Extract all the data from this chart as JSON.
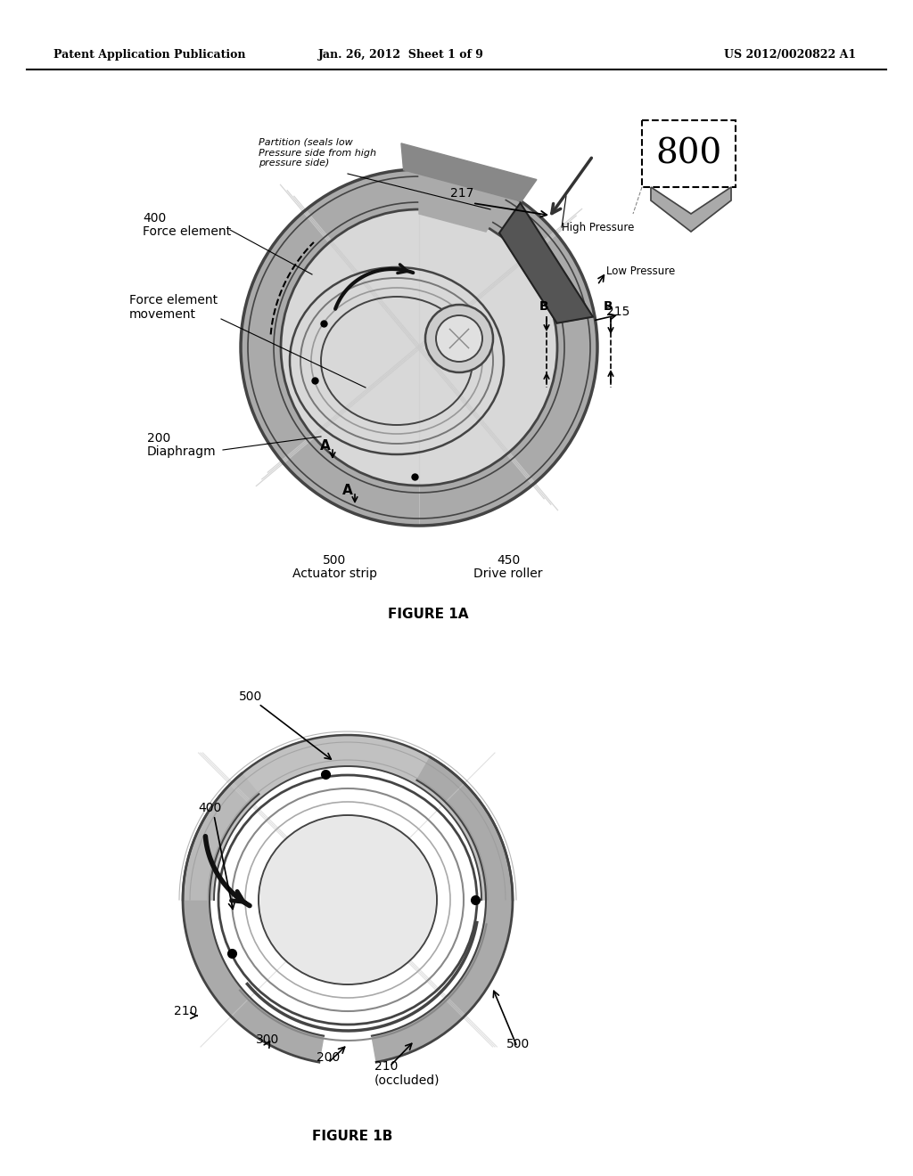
{
  "header_left": "Patent Application Publication",
  "header_center": "Jan. 26, 2012  Sheet 1 of 9",
  "header_right": "US 2012/0020822 A1",
  "figure1a_caption": "FIGURE 1A",
  "figure1b_caption": "FIGURE 1B",
  "bg_color": "#ffffff",
  "text_color": "#000000",
  "gray_dark": "#444444",
  "gray_medium": "#888888",
  "gray_light": "#bbbbbb",
  "gray_ring": "#aaaaaa",
  "gray_inner": "#d8d8d8"
}
